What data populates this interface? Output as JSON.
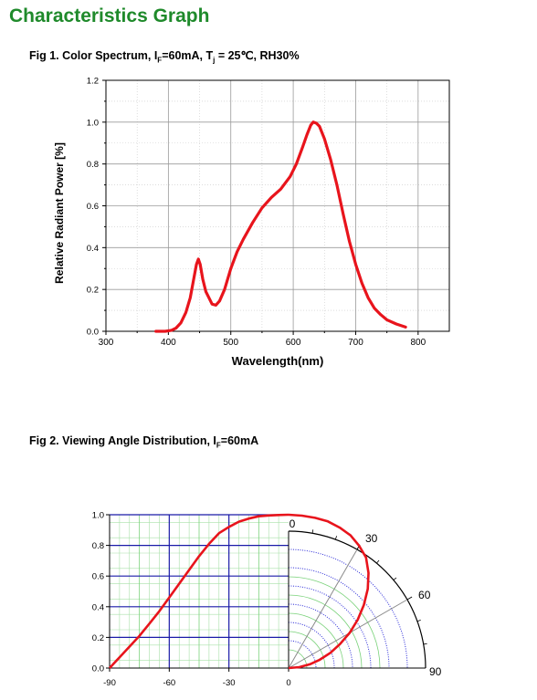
{
  "page_title": "Characteristics Graph",
  "fig1": {
    "title_prefix": "Fig 1. Color Spectrum, I",
    "title_sub_f": "F",
    "title_mid": "=60mA, T",
    "title_sub_j": "j",
    "title_suffix": " = 25℃, RH30%"
  },
  "fig2": {
    "title_prefix": "Fig 2. Viewing Angle Distribution, I",
    "title_sub_f": "F",
    "title_suffix": "=60mA"
  },
  "chart_data": [
    {
      "type": "line",
      "title": "",
      "xlabel": "Wavelength(nm)",
      "ylabel": "Relative Radiant Power [%]",
      "xlim": [
        300,
        850
      ],
      "ylim": [
        0,
        1.2
      ],
      "x_ticks": [
        "300",
        "400",
        "500",
        "600",
        "700",
        "800"
      ],
      "y_ticks": [
        "0.0",
        "0.2",
        "0.4",
        "0.6",
        "0.8",
        "1.0",
        "1.2"
      ],
      "grid": true,
      "line_color": "#e8141c",
      "series": [
        {
          "x": [
            380,
            395,
            405,
            412,
            420,
            428,
            435,
            440,
            445,
            448,
            451,
            455,
            460,
            465,
            470,
            476,
            482,
            490,
            500,
            510,
            520,
            535,
            550,
            565,
            580,
            595,
            605,
            615,
            622,
            628,
            632,
            637,
            642,
            650,
            660,
            670,
            680,
            690,
            700,
            710,
            720,
            730,
            740,
            750,
            765,
            780
          ],
          "y": [
            0.0,
            0.0,
            0.005,
            0.015,
            0.04,
            0.09,
            0.16,
            0.24,
            0.32,
            0.345,
            0.32,
            0.25,
            0.19,
            0.16,
            0.13,
            0.125,
            0.145,
            0.2,
            0.3,
            0.38,
            0.44,
            0.52,
            0.59,
            0.64,
            0.68,
            0.74,
            0.8,
            0.88,
            0.94,
            0.985,
            1.0,
            0.995,
            0.98,
            0.92,
            0.82,
            0.7,
            0.56,
            0.43,
            0.32,
            0.23,
            0.16,
            0.11,
            0.08,
            0.055,
            0.035,
            0.02
          ]
        }
      ]
    },
    {
      "type": "line",
      "title": "",
      "xlabel": "",
      "ylabel": "",
      "xlim": [
        -90,
        0
      ],
      "ylim": [
        0,
        1.0
      ],
      "x_ticks": [
        "-90",
        "-60",
        "-30",
        "0"
      ],
      "y_ticks": [
        "0.0",
        "0.2",
        "0.4",
        "0.6",
        "0.8",
        "1.0"
      ],
      "grid": true,
      "line_color": "#e8141c",
      "series": [
        {
          "x": [
            -90,
            -85,
            -80,
            -75,
            -70,
            -65,
            -60,
            -55,
            -50,
            -45,
            -40,
            -35,
            -30,
            -25,
            -20,
            -15,
            -10,
            -5,
            0
          ],
          "y": [
            0.0,
            0.07,
            0.14,
            0.21,
            0.29,
            0.37,
            0.46,
            0.55,
            0.64,
            0.73,
            0.81,
            0.88,
            0.92,
            0.955,
            0.975,
            0.99,
            0.995,
            0.998,
            1.0
          ]
        }
      ]
    },
    {
      "type": "polar",
      "title": "",
      "angle_range": [
        0,
        90
      ],
      "angle_labels": [
        "0",
        "30",
        "60",
        "90"
      ],
      "grid": true,
      "line_color": "#e8141c",
      "series": [
        {
          "theta": [
            0,
            5,
            10,
            15,
            20,
            25,
            30,
            35,
            40,
            45,
            50,
            55,
            60,
            65,
            70,
            75,
            80,
            85,
            90
          ],
          "r": [
            1.0,
            0.998,
            0.995,
            0.99,
            0.975,
            0.955,
            0.92,
            0.88,
            0.81,
            0.73,
            0.64,
            0.55,
            0.46,
            0.37,
            0.29,
            0.21,
            0.14,
            0.07,
            0.0
          ]
        }
      ]
    }
  ]
}
